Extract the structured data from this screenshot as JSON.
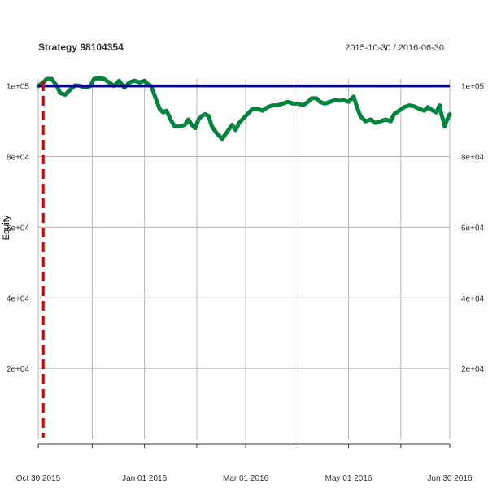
{
  "chart_data": {
    "type": "line",
    "title": "Strategy 98104354",
    "date_range_label": "2015-10-30 / 2016-06-30",
    "xlabel": "",
    "ylabel": "Equity",
    "x_range": [
      "2015-10-30",
      "2016-06-30"
    ],
    "ylim": [
      0,
      102000
    ],
    "y_ticks": [
      {
        "value": 20000,
        "label": "2e+04"
      },
      {
        "value": 40000,
        "label": "4e+04"
      },
      {
        "value": 60000,
        "label": "6e+04"
      },
      {
        "value": 80000,
        "label": "8e+04"
      },
      {
        "value": 100000,
        "label": "1e+05"
      }
    ],
    "x_tick_labels": [
      {
        "date": "2015-10-30",
        "label": "Oct 30 2015"
      },
      {
        "date": "2016-01-01",
        "label": "Jan 01 2016"
      },
      {
        "date": "2016-03-01",
        "label": "Mar 01 2016"
      },
      {
        "date": "2016-05-01",
        "label": "May 01 2016"
      },
      {
        "date": "2016-06-30",
        "label": "Jun 30 2016"
      }
    ],
    "x_gridlines": [
      "2015-10-30",
      "2015-12-01",
      "2016-01-01",
      "2016-02-01",
      "2016-03-01",
      "2016-04-01",
      "2016-05-01",
      "2016-06-01",
      "2016-06-30"
    ],
    "grid": true,
    "legend": "none",
    "series": [
      {
        "color": "#00843d",
        "points": [
          [
            "2015-10-30",
            100000
          ],
          [
            "2015-11-02",
            101000
          ],
          [
            "2015-11-04",
            102000
          ],
          [
            "2015-11-07",
            102000
          ],
          [
            "2015-11-10",
            100000
          ],
          [
            "2015-11-12",
            98000
          ],
          [
            "2015-11-15",
            97500
          ],
          [
            "2015-11-18",
            99000
          ],
          [
            "2015-11-21",
            100200
          ],
          [
            "2015-11-24",
            100000
          ],
          [
            "2015-11-27",
            99500
          ],
          [
            "2015-11-30",
            100000
          ],
          [
            "2015-12-02",
            102000
          ],
          [
            "2015-12-05",
            102200
          ],
          [
            "2015-12-08",
            102000
          ],
          [
            "2015-12-11",
            101000
          ],
          [
            "2015-12-14",
            100000
          ],
          [
            "2015-12-17",
            101500
          ],
          [
            "2015-12-20",
            99500
          ],
          [
            "2015-12-23",
            101000
          ],
          [
            "2015-12-26",
            101500
          ],
          [
            "2015-12-29",
            101000
          ],
          [
            "2016-01-01",
            101500
          ],
          [
            "2016-01-03",
            100500
          ],
          [
            "2016-01-05",
            100000
          ],
          [
            "2016-01-08",
            96000
          ],
          [
            "2016-01-10",
            93500
          ],
          [
            "2016-01-12",
            92500
          ],
          [
            "2016-01-14",
            93000
          ],
          [
            "2016-01-17",
            90000
          ],
          [
            "2016-01-19",
            88500
          ],
          [
            "2016-01-22",
            88500
          ],
          [
            "2016-01-25",
            89000
          ],
          [
            "2016-01-27",
            90500
          ],
          [
            "2016-01-29",
            89000
          ],
          [
            "2016-01-31",
            88000
          ],
          [
            "2016-02-02",
            90500
          ],
          [
            "2016-02-04",
            91500
          ],
          [
            "2016-02-06",
            92000
          ],
          [
            "2016-02-08",
            91500
          ],
          [
            "2016-02-10",
            88500
          ],
          [
            "2016-02-13",
            86500
          ],
          [
            "2016-02-16",
            85000
          ],
          [
            "2016-02-19",
            87000
          ],
          [
            "2016-02-22",
            89000
          ],
          [
            "2016-02-24",
            87500
          ],
          [
            "2016-02-26",
            89500
          ],
          [
            "2016-02-29",
            91000
          ],
          [
            "2016-03-02",
            92000
          ],
          [
            "2016-03-05",
            93500
          ],
          [
            "2016-03-08",
            93500
          ],
          [
            "2016-03-11",
            93000
          ],
          [
            "2016-03-14",
            94000
          ],
          [
            "2016-03-17",
            94500
          ],
          [
            "2016-03-20",
            94500
          ],
          [
            "2016-03-23",
            95000
          ],
          [
            "2016-03-26",
            95500
          ],
          [
            "2016-03-29",
            95000
          ],
          [
            "2016-04-01",
            95000
          ],
          [
            "2016-04-04",
            94500
          ],
          [
            "2016-04-07",
            95500
          ],
          [
            "2016-04-09",
            96500
          ],
          [
            "2016-04-12",
            96500
          ],
          [
            "2016-04-14",
            95500
          ],
          [
            "2016-04-17",
            95000
          ],
          [
            "2016-04-20",
            95500
          ],
          [
            "2016-04-23",
            96000
          ],
          [
            "2016-04-26",
            95800
          ],
          [
            "2016-04-28",
            96000
          ],
          [
            "2016-05-01",
            95500
          ],
          [
            "2016-05-04",
            97000
          ],
          [
            "2016-05-06",
            94000
          ],
          [
            "2016-05-08",
            91500
          ],
          [
            "2016-05-11",
            90000
          ],
          [
            "2016-05-14",
            90500
          ],
          [
            "2016-05-17",
            89500
          ],
          [
            "2016-05-20",
            90000
          ],
          [
            "2016-05-23",
            90500
          ],
          [
            "2016-05-26",
            90000
          ],
          [
            "2016-05-28",
            92000
          ],
          [
            "2016-05-31",
            93000
          ],
          [
            "2016-06-03",
            94000
          ],
          [
            "2016-06-06",
            94500
          ],
          [
            "2016-06-09",
            94200
          ],
          [
            "2016-06-12",
            93500
          ],
          [
            "2016-06-15",
            93000
          ],
          [
            "2016-06-17",
            94000
          ],
          [
            "2016-06-20",
            93000
          ],
          [
            "2016-06-22",
            92500
          ],
          [
            "2016-06-24",
            94500
          ],
          [
            "2016-06-25",
            92000
          ],
          [
            "2016-06-26",
            90500
          ],
          [
            "2016-06-27",
            88500
          ],
          [
            "2016-06-28",
            90000
          ],
          [
            "2016-06-29",
            91000
          ],
          [
            "2016-06-30",
            92000
          ]
        ]
      }
    ],
    "horizontal_line": {
      "value": 100000,
      "color": "#000080"
    },
    "vertical_marker": {
      "date": "2015-11-02",
      "color": "#cc0000",
      "style": "dashed"
    }
  }
}
